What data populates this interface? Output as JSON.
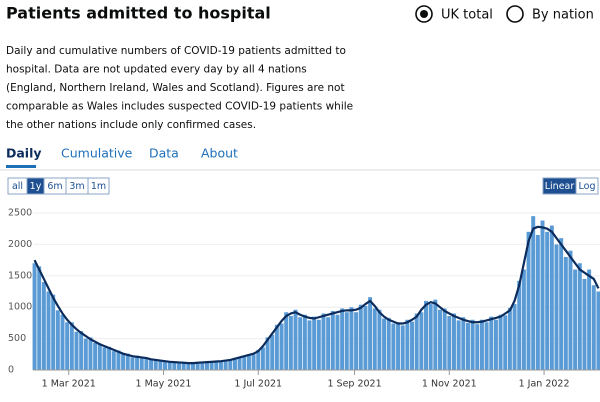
{
  "header": {
    "title": "Patients admitted to hospital"
  },
  "options": [
    "UK total",
    "By nation"
  ],
  "selected_option": 0,
  "description": [
    "Daily and cumulative numbers of COVID-19 patients admitted to",
    "hospital. Data are not updated every day by all 4 nations",
    "(England, Northern Ireland, Wales and Scotland). Figures are not",
    "comparable as Wales includes suspected COVID-19 patients while",
    "the other nations include only confirmed cases."
  ],
  "tabs": [
    "Daily",
    "Cumulative",
    "Data",
    "About"
  ],
  "selected_tab": 0,
  "range_buttons": [
    "all",
    "1y",
    "6m",
    "3m",
    "1m"
  ],
  "selected_range": 1,
  "scale_buttons": [
    "Linear",
    "Log"
  ],
  "selected_scale": 0,
  "chart_data": {
    "type": "bar",
    "color": "#5b9bd5",
    "grid": true,
    "x": [
      "2021-02-07",
      "2021-02-10",
      "2021-02-13",
      "2021-02-16",
      "2021-02-19",
      "2021-02-22",
      "2021-02-25",
      "2021-02-28",
      "2021-03-03",
      "2021-03-06",
      "2021-03-09",
      "2021-03-12",
      "2021-03-15",
      "2021-03-18",
      "2021-03-21",
      "2021-03-24",
      "2021-03-27",
      "2021-03-30",
      "2021-04-02",
      "2021-04-05",
      "2021-04-08",
      "2021-04-11",
      "2021-04-14",
      "2021-04-17",
      "2021-04-20",
      "2021-04-23",
      "2021-04-26",
      "2021-04-29",
      "2021-05-02",
      "2021-05-05",
      "2021-05-08",
      "2021-05-11",
      "2021-05-14",
      "2021-05-17",
      "2021-05-20",
      "2021-05-23",
      "2021-05-26",
      "2021-05-29",
      "2021-06-01",
      "2021-06-04",
      "2021-06-07",
      "2021-06-10",
      "2021-06-13",
      "2021-06-16",
      "2021-06-19",
      "2021-06-22",
      "2021-06-25",
      "2021-06-28",
      "2021-07-01",
      "2021-07-04",
      "2021-07-07",
      "2021-07-10",
      "2021-07-13",
      "2021-07-16",
      "2021-07-19",
      "2021-07-22",
      "2021-07-25",
      "2021-07-28",
      "2021-07-31",
      "2021-08-03",
      "2021-08-06",
      "2021-08-09",
      "2021-08-12",
      "2021-08-15",
      "2021-08-18",
      "2021-08-21",
      "2021-08-24",
      "2021-08-27",
      "2021-08-30",
      "2021-09-02",
      "2021-09-05",
      "2021-09-08",
      "2021-09-11",
      "2021-09-14",
      "2021-09-17",
      "2021-09-20",
      "2021-09-23",
      "2021-09-26",
      "2021-09-29",
      "2021-10-02",
      "2021-10-05",
      "2021-10-08",
      "2021-10-11",
      "2021-10-14",
      "2021-10-17",
      "2021-10-20",
      "2021-10-23",
      "2021-10-26",
      "2021-10-29",
      "2021-11-01",
      "2021-11-04",
      "2021-11-07",
      "2021-11-10",
      "2021-11-13",
      "2021-11-16",
      "2021-11-19",
      "2021-11-22",
      "2021-11-25",
      "2021-11-28",
      "2021-12-01",
      "2021-12-04",
      "2021-12-07",
      "2021-12-10",
      "2021-12-13",
      "2021-12-16",
      "2021-12-19",
      "2021-12-22",
      "2021-12-25",
      "2021-12-28",
      "2021-12-31",
      "2022-01-03",
      "2022-01-06",
      "2022-01-09",
      "2022-01-12",
      "2022-01-15",
      "2022-01-18",
      "2022-01-21",
      "2022-01-24",
      "2022-01-27",
      "2022-01-30",
      "2022-02-02",
      "2022-02-05"
    ],
    "values": [
      1700,
      1650,
      1400,
      1250,
      1200,
      950,
      880,
      760,
      760,
      610,
      620,
      500,
      520,
      430,
      420,
      360,
      370,
      300,
      310,
      250,
      260,
      200,
      230,
      190,
      200,
      160,
      170,
      140,
      150,
      120,
      135,
      110,
      125,
      100,
      120,
      110,
      130,
      115,
      140,
      125,
      150,
      140,
      170,
      170,
      210,
      210,
      250,
      250,
      320,
      360,
      520,
      560,
      720,
      740,
      920,
      860,
      960,
      840,
      880,
      790,
      850,
      800,
      900,
      840,
      940,
      880,
      980,
      920,
      1000,
      920,
      1040,
      1020,
      1160,
      980,
      960,
      820,
      830,
      740,
      760,
      710,
      800,
      770,
      900,
      920,
      1100,
      1050,
      1120,
      960,
      980,
      860,
      900,
      790,
      840,
      750,
      800,
      730,
      800,
      760,
      850,
      800,
      880,
      870,
      990,
      1050,
      1420,
      1600,
      2200,
      2450,
      2150,
      2380,
      2200,
      2300,
      2000,
      2100,
      1800,
      1900,
      1600,
      1700,
      1450,
      1600,
      1350,
      1250
    ],
    "line": {
      "color": "#0b2c5c",
      "values": [
        1750,
        1600,
        1450,
        1300,
        1150,
        1020,
        900,
        800,
        720,
        650,
        590,
        540,
        490,
        450,
        410,
        380,
        350,
        320,
        290,
        260,
        240,
        220,
        210,
        200,
        190,
        170,
        160,
        150,
        140,
        130,
        125,
        120,
        115,
        110,
        110,
        115,
        120,
        125,
        130,
        135,
        140,
        150,
        160,
        180,
        200,
        220,
        240,
        260,
        300,
        380,
        480,
        580,
        680,
        780,
        860,
        900,
        920,
        880,
        850,
        830,
        820,
        840,
        860,
        880,
        900,
        920,
        940,
        950,
        950,
        960,
        990,
        1050,
        1100,
        1020,
        920,
        850,
        800,
        770,
        740,
        740,
        760,
        800,
        850,
        960,
        1040,
        1080,
        1060,
        1000,
        940,
        900,
        860,
        830,
        800,
        780,
        760,
        760,
        770,
        790,
        810,
        830,
        850,
        900,
        950,
        1100,
        1350,
        1700,
        2050,
        2250,
        2280,
        2270,
        2250,
        2200,
        2100,
        2000,
        1900,
        1800,
        1700,
        1600,
        1550,
        1500,
        1450,
        1300
      ]
    },
    "xlim": [
      "2021-02-06",
      "2022-02-06"
    ],
    "xticks": [
      {
        "value": "2021-03-01",
        "label": "1 Mar 2021"
      },
      {
        "value": "2021-05-01",
        "label": "1 May 2021"
      },
      {
        "value": "2021-07-01",
        "label": "1 Jul 2021"
      },
      {
        "value": "2021-09-01",
        "label": "1 Sep 2021"
      },
      {
        "value": "2021-11-01",
        "label": "1 Nov 2021"
      },
      {
        "value": "2022-01-01",
        "label": "1 Jan 2022"
      }
    ],
    "ylim": [
      0,
      2500
    ],
    "yticks": [
      0,
      500,
      1000,
      1500,
      2000,
      2500
    ]
  }
}
